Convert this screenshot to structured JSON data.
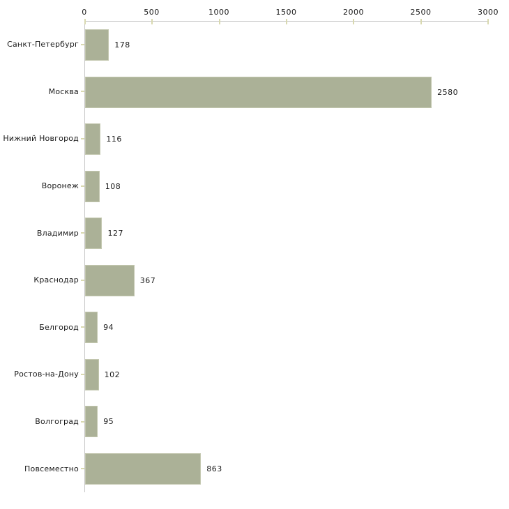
{
  "chart_data": {
    "type": "bar",
    "orientation": "horizontal",
    "title": "",
    "xlabel": "",
    "ylabel": "",
    "categories": [
      "Санкт-Петербург",
      "Москва",
      "Нижний Новгород",
      "Воронеж",
      "Владимир",
      "Краснодар",
      "Белгород",
      "Ростов-на-Дону",
      "Волгоград",
      "Повсеместно"
    ],
    "values": [
      178,
      2580,
      116,
      108,
      127,
      367,
      94,
      102,
      95,
      863
    ],
    "value_labels": [
      "178",
      "2580",
      "116",
      "108",
      "127",
      "367",
      "94",
      "102",
      "95",
      "863"
    ],
    "xlim": [
      0,
      3000
    ],
    "x_ticks": [
      0,
      500,
      1000,
      1500,
      2000,
      2500,
      3000
    ],
    "x_tick_labels": [
      "0",
      "500",
      "1000",
      "1500",
      "2000",
      "2500",
      "3000"
    ],
    "axis_position": "top",
    "grid": false,
    "legend": false,
    "colors": {
      "bar_fill": "#abb197",
      "bar_edge": "#c3c7af",
      "axis_line": "#c8c8c8",
      "tick_mark": "#d9d9b0",
      "text": "#1a1a1a",
      "background": "#ffffff"
    }
  }
}
